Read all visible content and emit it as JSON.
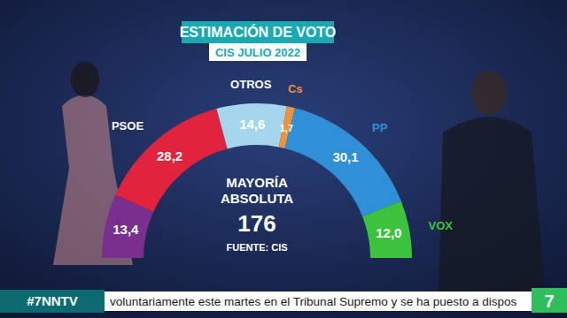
{
  "chart_data": {
    "type": "pie",
    "title": "ESTIMACIÓN DE VOTO",
    "subtitle": "CIS JULIO 2022",
    "categories": [
      null,
      "PSOE",
      "OTROS",
      "Cs",
      "PP",
      "VOX"
    ],
    "values": [
      13.4,
      28.2,
      14.6,
      1.7,
      30.1,
      12.0
    ],
    "value_labels": [
      "13,4",
      "28,2",
      "14,6",
      "1,7",
      "30,1",
      "12,0"
    ],
    "colors": [
      "#7a2f8f",
      "#e2233d",
      "#a6d6ee",
      "#f0923a",
      "#2f90d8",
      "#3cc23c"
    ],
    "data_labels": true,
    "annotations": [
      "MAYORÍA",
      "ABSOLUTA",
      "FUENTE: CIS"
    ],
    "majority": 176
  },
  "overlay": {
    "hashtag": "#7NNTV",
    "ticker": "voluntariamente este martes en el Tribunal Supremo y se ha puesto a dispos",
    "logo": "7"
  }
}
